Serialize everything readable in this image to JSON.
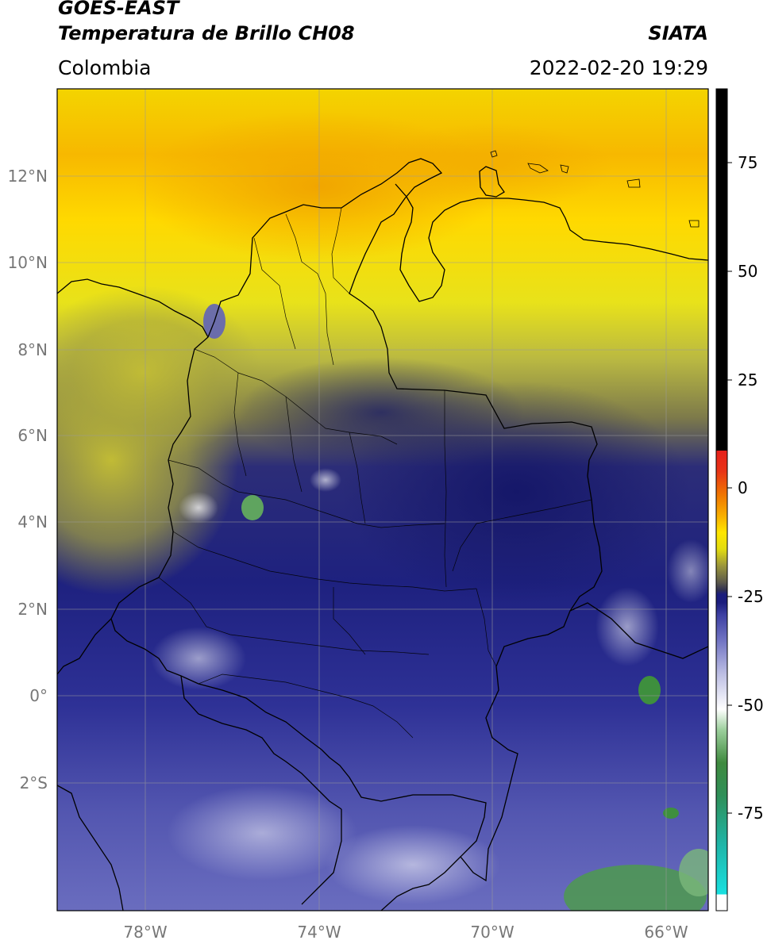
{
  "header": {
    "satellite": "GOES-EAST",
    "product": "Temperatura de Brillo CH08",
    "brand": "SIATA",
    "region": "Colombia",
    "timestamp": "2022-02-20 19:29"
  },
  "map": {
    "lat_labels": [
      "12°N",
      "10°N",
      "8°N",
      "6°N",
      "4°N",
      "2°N",
      "0°",
      "2°S"
    ],
    "lon_labels": [
      "78°W",
      "74°W",
      "70°W",
      "66°W"
    ]
  },
  "colorbar": {
    "ticks": [
      "75",
      "50",
      "25",
      "0",
      "-25",
      "-50",
      "-75"
    ],
    "colors": {
      "black": "#000000",
      "red": "#e6261b",
      "orange": "#f28a00",
      "yellow": "#ffe600",
      "olive": "#8f8a38",
      "navy": "#1b1d7d",
      "white": "#ffffff",
      "green": "#3e8f3e",
      "cyan": "#19d3d3"
    }
  }
}
